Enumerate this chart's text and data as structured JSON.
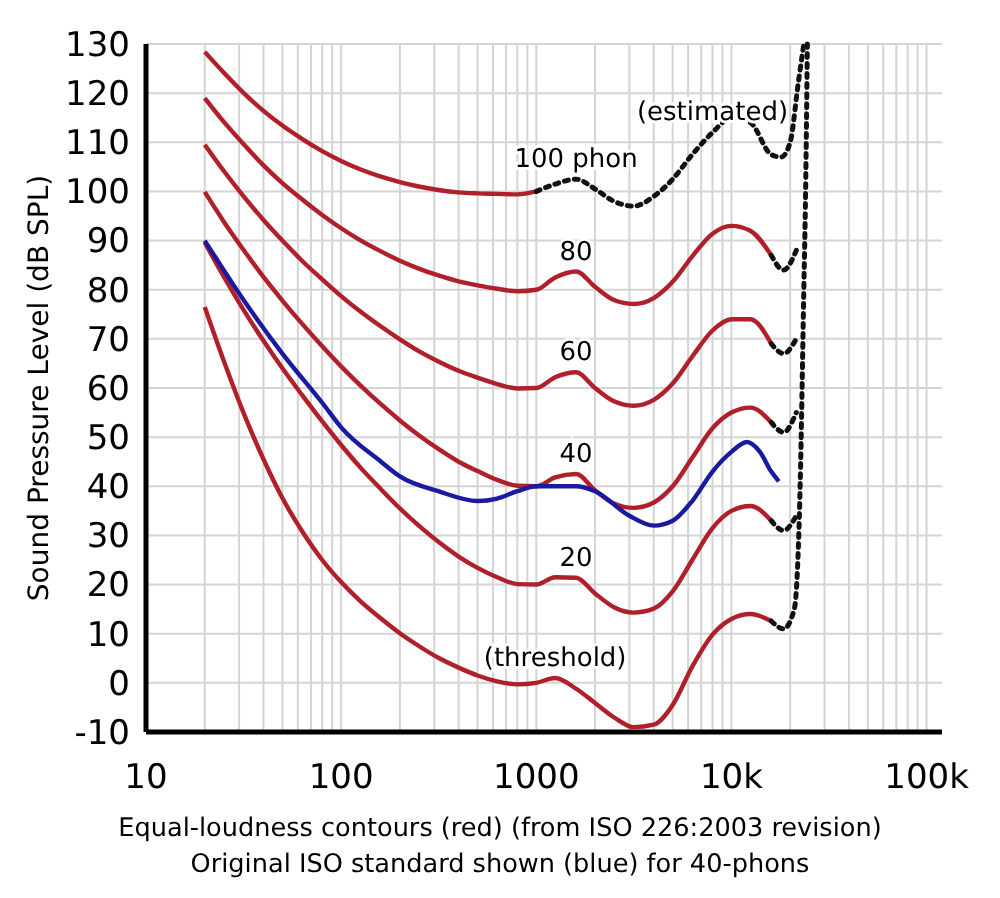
{
  "chart_data": {
    "type": "line",
    "xlabel": "Equal-loudness contours (red) (from ISO 226:2003 revision)",
    "ylabel": "Sound Pressure Level (dB SPL)",
    "log": "x",
    "grid": true,
    "marker": "none",
    "line_style": "solid",
    "xlim": [
      10,
      120000
    ],
    "ylim": [
      -10,
      130
    ],
    "xticks": [
      10,
      {
        "value": 20,
        "label": null
      },
      {
        "value": 30,
        "label": null
      },
      {
        "value": 40,
        "label": null
      },
      {
        "value": 50,
        "label": null
      },
      {
        "value": 60,
        "label": null
      },
      {
        "value": 70,
        "label": null
      },
      {
        "value": 80,
        "label": null
      },
      {
        "value": 90,
        "label": null
      },
      100,
      {
        "value": 200,
        "label": null
      },
      {
        "value": 300,
        "label": null
      },
      {
        "value": 400,
        "label": null
      },
      {
        "value": 500,
        "label": null
      },
      {
        "value": 600,
        "label": null
      },
      {
        "value": 700,
        "label": null
      },
      {
        "value": 800,
        "label": null
      },
      {
        "value": 900,
        "label": null
      },
      1000,
      {
        "value": 2000,
        "label": null
      },
      {
        "value": 3000,
        "label": null
      },
      {
        "value": 4000,
        "label": null
      },
      {
        "value": 5000,
        "label": null
      },
      {
        "value": 6000,
        "label": null
      },
      {
        "value": 7000,
        "label": null
      },
      {
        "value": 8000,
        "label": null
      },
      {
        "value": 9000,
        "label": null
      },
      {
        "value": 10000,
        "label": "10k"
      },
      {
        "value": 20000,
        "label": null
      },
      {
        "value": 30000,
        "label": null
      },
      {
        "value": 40000,
        "label": null
      },
      {
        "value": 50000,
        "label": null
      },
      {
        "value": 60000,
        "label": null
      },
      {
        "value": 70000,
        "label": null
      },
      {
        "value": 80000,
        "label": null
      },
      {
        "value": 90000,
        "label": null
      },
      {
        "value": 100000,
        "label": "100k"
      }
    ],
    "yticks": [
      -10,
      0,
      10,
      20,
      30,
      40,
      50,
      60,
      70,
      80,
      90,
      100,
      110,
      120,
      130
    ],
    "series": [
      {
        "color": "#b0202a",
        "x": [
          20,
          25,
          31.5,
          40,
          50,
          63,
          80,
          100,
          125,
          160,
          200,
          250,
          315,
          400,
          500,
          630,
          800,
          1000,
          1250,
          1600,
          2000,
          2500,
          3150,
          4000,
          5000,
          6300,
          8000,
          10000,
          12500,
          16000
        ],
        "values": [
          76.5,
          65.6,
          55.1,
          45.5,
          37.6,
          30.9,
          25,
          20.5,
          16.7,
          13.1,
          10.1,
          7.5,
          5.1,
          3.1,
          1.5,
          0.3,
          -0.3,
          0,
          1,
          -1.2,
          -4.1,
          -7,
          -9,
          -8.5,
          -4.5,
          3.3,
          9.8,
          13,
          14,
          12.6
        ]
      },
      {
        "color": "#b0202a",
        "x": [
          20,
          25,
          31.5,
          40,
          50,
          63,
          80,
          100,
          125,
          160,
          200,
          250,
          315,
          400,
          500,
          630,
          800,
          1000,
          1250,
          1600,
          2000,
          2500,
          3150,
          4000,
          5000,
          6300,
          8000,
          10000,
          12500,
          16000
        ],
        "values": [
          89.6,
          82.7,
          76,
          69.6,
          64,
          58.6,
          53.2,
          48.4,
          43.9,
          39.4,
          35.5,
          32,
          28.7,
          25.7,
          23.4,
          21.5,
          20.1,
          20,
          21.5,
          21.4,
          18.2,
          15.4,
          14.3,
          15.1,
          18.6,
          25,
          31.5,
          35,
          36,
          33
        ]
      },
      {
        "color": "#b0202a",
        "x": [
          20,
          25,
          31.5,
          40,
          50,
          63,
          80,
          100,
          125,
          160,
          200,
          250,
          315,
          400,
          500,
          630,
          800,
          1000,
          1250,
          1600,
          2000,
          2500,
          3150,
          4000,
          5000,
          6300,
          8000,
          10000,
          12500,
          16000
        ],
        "values": [
          99.9,
          93.9,
          88.2,
          82.6,
          77.8,
          73.1,
          68.5,
          64.4,
          60.6,
          56.7,
          53.4,
          50.4,
          47.6,
          45,
          43.1,
          41.3,
          40.1,
          40,
          41.8,
          42.5,
          39.2,
          36.5,
          35.6,
          36.7,
          40,
          45.8,
          51.8,
          55,
          56,
          53
        ]
      },
      {
        "color": "#b0202a",
        "x": [
          20,
          25,
          31.5,
          40,
          50,
          63,
          80,
          100,
          125,
          160,
          200,
          250,
          315,
          400,
          500,
          630,
          800,
          1000,
          1250,
          1600,
          2000,
          2500,
          3150,
          4000,
          5000,
          6300,
          8000,
          10000,
          12500,
          16000
        ],
        "values": [
          109.5,
          104.2,
          99.1,
          94.2,
          90,
          85.9,
          82.1,
          78.7,
          75.6,
          72.5,
          69.9,
          67.5,
          65.4,
          63.5,
          62.1,
          60.8,
          59.9,
          60,
          62.2,
          63.2,
          60,
          57.3,
          56.4,
          57.6,
          60.9,
          66.4,
          71.7,
          74,
          74,
          69
        ]
      },
      {
        "color": "#b0202a",
        "x": [
          20,
          25,
          31.5,
          40,
          50,
          63,
          80,
          100,
          125,
          160,
          200,
          250,
          315,
          400,
          500,
          630,
          800,
          1000,
          1250,
          1600,
          2000,
          2500,
          3150,
          4000,
          5000,
          6300,
          8000,
          10000,
          12500,
          16000
        ],
        "values": [
          119,
          114.2,
          109.7,
          105.3,
          101.7,
          98.4,
          95.2,
          92.5,
          90.1,
          87.8,
          85.9,
          84.3,
          82.9,
          81.7,
          80.9,
          80.2,
          79.7,
          80,
          82.5,
          83.7,
          80.6,
          77.9,
          77.1,
          78.3,
          81.6,
          86.8,
          91.4,
          93,
          92,
          87
        ]
      },
      {
        "color": "#b0202a",
        "x": [
          20,
          25,
          31.5,
          40,
          50,
          63,
          80,
          100,
          125,
          160,
          200,
          250,
          315,
          400,
          500,
          630,
          800,
          1000
        ],
        "values": [
          128.4,
          124.2,
          120.1,
          116.4,
          113.4,
          110.7,
          108.2,
          106.2,
          104.5,
          103,
          101.9,
          101,
          100.3,
          99.8,
          99.6,
          99.5,
          99.4,
          100
        ]
      },
      {
        "color": "#1a1aa0",
        "x": [
          20,
          31.5,
          50,
          80,
          100,
          160,
          200,
          315,
          500,
          630,
          800,
          1000,
          1600,
          2000,
          3000,
          4000,
          5000,
          6300,
          8000,
          10000,
          12000,
          14000,
          16000,
          17500
        ],
        "values": [
          90,
          78,
          67,
          57,
          52,
          45,
          42,
          39,
          37,
          37.5,
          39,
          40,
          40,
          39,
          34,
          32,
          33,
          37,
          43,
          47,
          49,
          47,
          43,
          41
        ]
      },
      {
        "color": "#111111",
        "line_style": "dotted",
        "x": [
          1000,
          1250,
          1600,
          2000,
          2500,
          3150,
          4000,
          5000,
          6300,
          8000,
          10000,
          12500,
          16000,
          18000,
          20000,
          22000,
          23500
        ],
        "values": [
          100,
          101.5,
          102.5,
          100.5,
          98,
          97,
          99,
          102.5,
          107.5,
          112,
          115,
          114,
          107.5,
          107,
          110,
          122,
          130
        ]
      },
      {
        "color": "#111111",
        "line_style": "dotted",
        "x": [
          16000,
          18500,
          21000,
          22500,
          23500,
          24000,
          24500
        ],
        "values": [
          12.6,
          11,
          15,
          40,
          80,
          100,
          130
        ]
      },
      {
        "color": "#111111",
        "line_style": "dotted",
        "x": [
          16000,
          18500,
          21500
        ],
        "values": [
          33,
          31,
          34
        ]
      },
      {
        "color": "#111111",
        "line_style": "dotted",
        "x": [
          16000,
          18500,
          21500
        ],
        "values": [
          53,
          51,
          55
        ]
      },
      {
        "color": "#111111",
        "line_style": "dotted",
        "x": [
          16000,
          18500,
          21500
        ],
        "values": [
          69,
          67,
          70
        ]
      },
      {
        "color": "#111111",
        "line_style": "dotted",
        "x": [
          16000,
          18500,
          21500
        ],
        "values": [
          87,
          84,
          88
        ]
      }
    ],
    "annotations": [
      {
        "text": "(estimated)",
        "x": 8000,
        "y": 112
      },
      {
        "text": "100 phon",
        "x": 1600,
        "y": 102.5
      },
      {
        "text": "80",
        "x": 1600,
        "y": 83.7
      },
      {
        "text": "60",
        "x": 1600,
        "y": 63.2
      },
      {
        "text": "40",
        "x": 1600,
        "y": 42.5
      },
      {
        "text": "20",
        "x": 1600,
        "y": 21.4
      },
      {
        "text": "(threshold)",
        "x": 1250,
        "y": 1
      },
      "Original ISO standard shown (blue) for 40-phons"
    ]
  }
}
